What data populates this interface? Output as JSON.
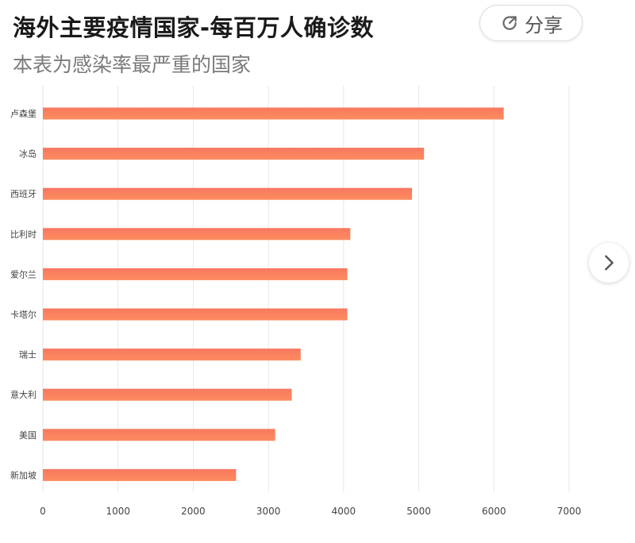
{
  "header": {
    "title": "海外主要疫情国家-每百万人确诊数",
    "subtitle": "本表为感染率最严重的国家",
    "share_label": "分享",
    "share_icon": "share-icon"
  },
  "navigation": {
    "next_icon": "chevron-right-icon"
  },
  "chart_data": {
    "type": "bar",
    "orientation": "horizontal",
    "title": "海外主要疫情国家-每百万人确诊数",
    "subtitle": "本表为感染率最严重的国家",
    "categories": [
      "卢森堡",
      "冰岛",
      "西班牙",
      "比利时",
      "爱尔兰",
      "卡塔尔",
      "瑞士",
      "意大利",
      "美国",
      "新加坡"
    ],
    "values": [
      6130,
      5070,
      4910,
      4090,
      4050,
      4050,
      3430,
      3310,
      3090,
      2570
    ],
    "xlim": [
      0,
      7000
    ],
    "xticks": [
      "0",
      "1000",
      "2000",
      "3000",
      "4000",
      "5000",
      "6000",
      "7000"
    ],
    "grid": true,
    "colors": {
      "bar_top": "#f87860",
      "bar_bottom": "#fd8c5e",
      "grid": "#e6e6e6",
      "axis_text": "#444444"
    }
  }
}
